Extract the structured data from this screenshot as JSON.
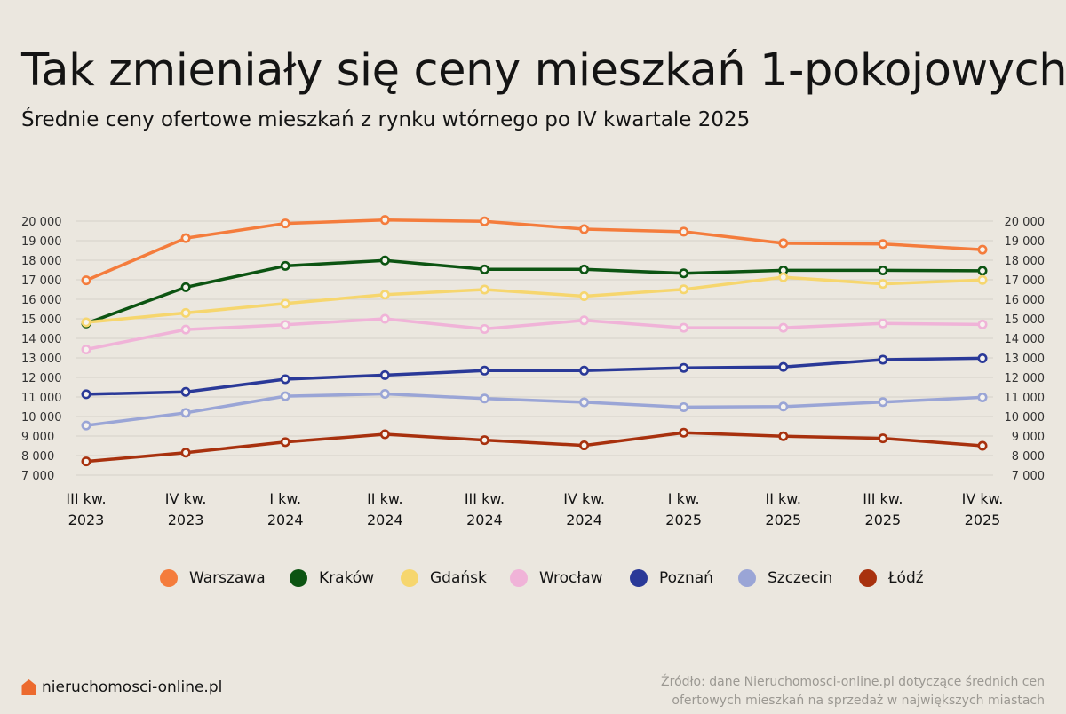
{
  "header": {
    "title": "Tak zmieniały się ceny mieszkań 1-pokojowych",
    "subtitle": "Średnie ceny ofertowe mieszkań z rynku wtórnego po IV kwartale 2025"
  },
  "footer": {
    "brand": "nieruchomosci-online.pl",
    "brand_icon": "house-icon",
    "brand_color": "#ec6a2e",
    "source_line1": "Źródło: dane Nieruchomosci-online.pl dotyczące średnich cen",
    "source_line2": "ofertowych mieszkań na sprzedaż w największych miastach"
  },
  "chart_data": {
    "type": "line",
    "title": "Tak zmieniały się ceny mieszkań 1-pokojowych",
    "subtitle": "Średnie ceny ofertowe mieszkań z rynku wtórnego po IV kwartale 2025",
    "categories": [
      [
        "III kw.",
        "2023"
      ],
      [
        "IV kw.",
        "2023"
      ],
      [
        "I kw.",
        "2024"
      ],
      [
        "II kw.",
        "2024"
      ],
      [
        "III kw.",
        "2024"
      ],
      [
        "IV kw.",
        "2024"
      ],
      [
        "I kw.",
        "2025"
      ],
      [
        "II kw.",
        "2025"
      ],
      [
        "III kw.",
        "2025"
      ],
      [
        "IV kw.",
        "2025"
      ]
    ],
    "ylim": [
      7000,
      20000
    ],
    "yticks": [
      7000,
      8000,
      9000,
      10000,
      11000,
      12000,
      13000,
      14000,
      15000,
      16000,
      17000,
      18000,
      19000,
      20000
    ],
    "ytick_labels": [
      "7 000",
      "8 000",
      "9 000",
      "10 000",
      "11 000",
      "12 000",
      "13 000",
      "14 000",
      "15 000",
      "16 000",
      "17 000",
      "18 000",
      "19 000",
      "20 000"
    ],
    "grid": true,
    "legend_position": "bottom",
    "series": [
      {
        "name": "Warszawa",
        "color": "#f47c3c",
        "values": [
          16970,
          19130,
          19880,
          20060,
          19990,
          19590,
          19460,
          18870,
          18830,
          18540
        ]
      },
      {
        "name": "Kraków",
        "color": "#0c5412",
        "values": [
          14760,
          16620,
          17710,
          17990,
          17530,
          17530,
          17330,
          17480,
          17480,
          17460
        ]
      },
      {
        "name": "Gdańsk",
        "color": "#f6d66e",
        "values": [
          14820,
          15300,
          15780,
          16240,
          16500,
          16160,
          16510,
          17130,
          16790,
          16990
        ]
      },
      {
        "name": "Wrocław",
        "color": "#f0b3d8",
        "values": [
          13430,
          14450,
          14690,
          15000,
          14480,
          14920,
          14540,
          14540,
          14760,
          14710
        ]
      },
      {
        "name": "Poznań",
        "color": "#2a3998",
        "values": [
          11140,
          11260,
          11910,
          12120,
          12350,
          12350,
          12490,
          12540,
          12910,
          12980
        ]
      },
      {
        "name": "Szczecin",
        "color": "#9aa5d6",
        "values": [
          9540,
          10190,
          11040,
          11160,
          10920,
          10730,
          10480,
          10510,
          10740,
          10980
        ]
      },
      {
        "name": "Łódź",
        "color": "#a8310e",
        "values": [
          7700,
          8150,
          8690,
          9090,
          8790,
          8520,
          9170,
          8990,
          8880,
          8500
        ]
      }
    ]
  }
}
